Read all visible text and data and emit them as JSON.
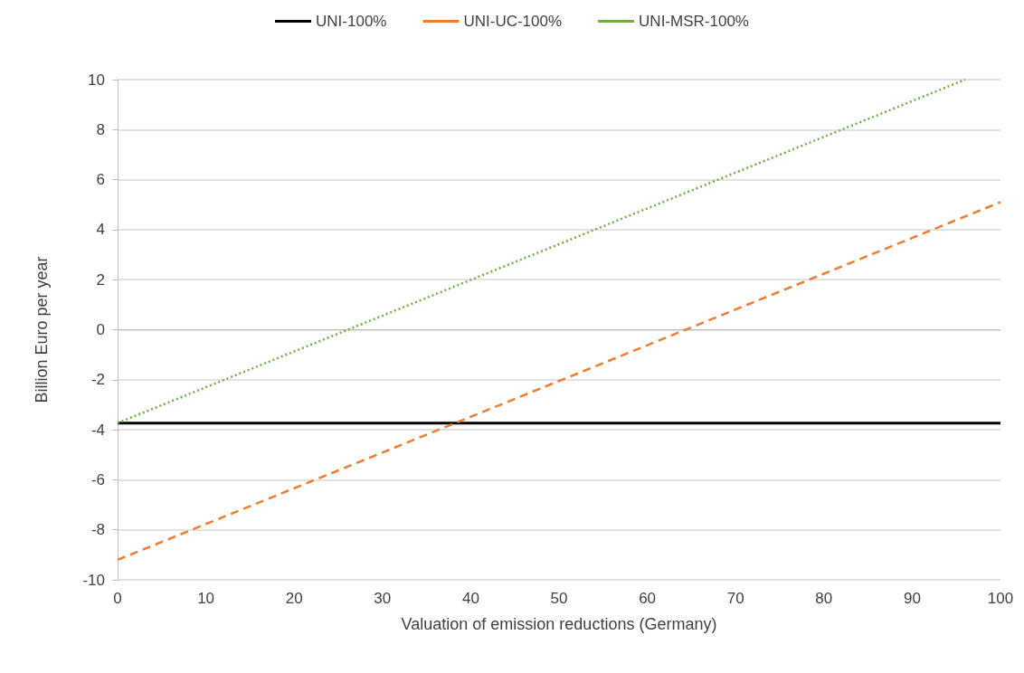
{
  "chart_data": {
    "type": "line",
    "xlabel": "Valuation of emission reductions (Germany)",
    "ylabel": "Billion Euro per year",
    "series": [
      {
        "name": "UNI-100%",
        "color": "#000000",
        "x": [
          0,
          100
        ],
        "values": [
          -3.73,
          -3.73
        ],
        "line_style": "solid"
      },
      {
        "name": "UNI-UC-100%",
        "color": "#ed7d31",
        "x": [
          0,
          100
        ],
        "values": [
          -9.2,
          5.1
        ],
        "line_style": "dashed"
      },
      {
        "name": "UNI-MSR-100%",
        "color": "#70ad47",
        "x": [
          0,
          96
        ],
        "values": [
          -3.73,
          10
        ],
        "line_style": "dotted"
      }
    ],
    "xlim": [
      0,
      100
    ],
    "xticks": [
      0,
      10,
      20,
      30,
      40,
      50,
      60,
      70,
      80,
      90,
      100
    ],
    "ylim": [
      -10,
      10
    ],
    "yticks": [
      -10,
      -8,
      -6,
      -4,
      -2,
      0,
      2,
      4,
      6,
      8,
      10
    ],
    "grid": "y",
    "legend": "top",
    "marker": "none"
  }
}
